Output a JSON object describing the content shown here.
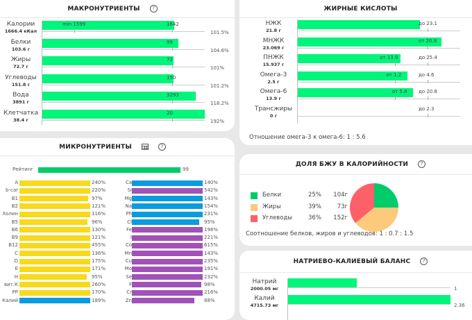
{
  "macro": {
    "title": "МАКРОНУТРИЕНТЫ",
    "help_icon": "?",
    "rows": [
      {
        "name": "Калории",
        "value": "1666.4 кКал",
        "norm_label": "1642",
        "min_label": "min 1599",
        "percent": "101.5%",
        "fill": 1.015
      },
      {
        "name": "Белки",
        "value": "103.6 г",
        "norm_label": "99",
        "percent": "104.6%",
        "fill": 1.046
      },
      {
        "name": "Жиры",
        "value": "72.7 г",
        "norm_label": "72",
        "percent": "101%",
        "fill": 1.01
      },
      {
        "name": "Углеводы",
        "value": "151.8 г",
        "norm_label": "150",
        "percent": "101.2%",
        "fill": 1.012
      },
      {
        "name": "Вода",
        "value": "3891 г",
        "norm_label": "3293",
        "percent": "118.2%",
        "fill": 1.182
      },
      {
        "name": "Клетчатка",
        "value": "38.4 г",
        "norm_label": "20",
        "percent": "192%",
        "fill": 1.25
      }
    ]
  },
  "fatty": {
    "title": "ЖИРНЫЕ КИСЛОТЫ",
    "rows": [
      {
        "name": "НЖК",
        "value": "21.8 г",
        "labels": [
          "до 23.1"
        ],
        "fill": 0.755
      },
      {
        "name": "МНЖК",
        "value": "23.069 г",
        "labels": [
          "от 20.8"
        ],
        "fill": 0.885
      },
      {
        "name": "ПНЖК",
        "value": "15.937 г",
        "labels": [
          "от 13.9",
          "до 25.4"
        ],
        "fill": 0.635
      },
      {
        "name": "Омега-3",
        "value": "2.5 г",
        "labels": [
          "от 1.2",
          "до 4.6"
        ],
        "fill": 0.675
      },
      {
        "name": "Омега-6",
        "value": "13.9 г",
        "labels": [
          "от 5.8",
          "до 20.8"
        ],
        "fill": 0.71
      },
      {
        "name": "Трансжиры",
        "value": "0 г",
        "labels": [
          "до 2.3"
        ],
        "fill": 0
      }
    ],
    "ratio_text": "Отношение омега-3 к омега-6: 1 : 5.6"
  },
  "micro": {
    "title": "МИКРОНУТРИЕНТЫ",
    "rating_label": "Рейтинг",
    "rating_value": "99",
    "colors": {
      "vitamin": "#f7d91e",
      "macro": "#0a9be0",
      "trace": "#a152b7",
      "rating": "#00cc6a"
    },
    "left": [
      {
        "name": "A",
        "pct": "240%",
        "type": "vitamin",
        "full": true
      },
      {
        "name": "b-car",
        "pct": "220%",
        "type": "vitamin",
        "full": true
      },
      {
        "name": "B1",
        "pct": "97%",
        "type": "vitamin",
        "full": false,
        "fill": 0.97
      },
      {
        "name": "B2",
        "pct": "121%",
        "type": "vitamin",
        "full": true
      },
      {
        "name": "Холин",
        "pct": "116%",
        "type": "vitamin",
        "full": true
      },
      {
        "name": "B5",
        "pct": "96%",
        "type": "vitamin",
        "full": false,
        "fill": 0.96
      },
      {
        "name": "B6",
        "pct": "130%",
        "type": "vitamin",
        "full": true
      },
      {
        "name": "B9",
        "pct": "121%",
        "type": "vitamin",
        "full": true
      },
      {
        "name": "B12",
        "pct": "455%",
        "type": "vitamin",
        "full": true
      },
      {
        "name": "C",
        "pct": "136%",
        "type": "vitamin",
        "full": true
      },
      {
        "name": "D",
        "pct": "175%",
        "type": "vitamin",
        "full": true
      },
      {
        "name": "E",
        "pct": "171%",
        "type": "vitamin",
        "full": true
      },
      {
        "name": "H",
        "pct": "95%",
        "type": "vitamin",
        "full": false,
        "fill": 0.95
      },
      {
        "name": "вит.К",
        "pct": "260%",
        "type": "vitamin",
        "full": true
      },
      {
        "name": "PP",
        "pct": "170%",
        "type": "vitamin",
        "full": true
      },
      {
        "name": "Калий",
        "pct": "189%",
        "type": "macro",
        "full": true
      }
    ],
    "right": [
      {
        "name": "Ca",
        "pct": "140%",
        "type": "macro",
        "full": true
      },
      {
        "name": "Si",
        "pct": "542%",
        "type": "trace",
        "full": true
      },
      {
        "name": "Mg",
        "pct": "143%",
        "type": "macro",
        "full": true
      },
      {
        "name": "Na",
        "pct": "154%",
        "type": "macro",
        "full": true
      },
      {
        "name": "Ph",
        "pct": "231%",
        "type": "macro",
        "full": true
      },
      {
        "name": "Cl",
        "pct": "95%",
        "type": "macro",
        "full": false,
        "fill": 0.95
      },
      {
        "name": "Fe",
        "pct": "198%",
        "type": "trace",
        "full": true
      },
      {
        "name": "I",
        "pct": "221%",
        "type": "trace",
        "full": true
      },
      {
        "name": "Co",
        "pct": "615%",
        "type": "trace",
        "full": true
      },
      {
        "name": "Mn",
        "pct": "143%",
        "type": "trace",
        "full": true
      },
      {
        "name": "Cu",
        "pct": "235%",
        "type": "trace",
        "full": true
      },
      {
        "name": "Mo",
        "pct": "191%",
        "type": "trace",
        "full": true
      },
      {
        "name": "Se",
        "pct": "232%",
        "type": "trace",
        "full": true
      },
      {
        "name": "F",
        "pct": "98%",
        "type": "trace",
        "full": false,
        "fill": 0.98
      },
      {
        "name": "Cr",
        "pct": "216%",
        "type": "trace",
        "full": true
      },
      {
        "name": "Zn",
        "pct": "88%",
        "type": "trace",
        "full": false,
        "fill": 0.88
      }
    ]
  },
  "bju": {
    "title": "ДОЛЯ БЖУ В КАЛОРИЙНОСТИ",
    "items": [
      {
        "name": "Белки",
        "percent": "25%",
        "grams": "104г",
        "color": "#00cc6a",
        "share": 25
      },
      {
        "name": "Жиры",
        "percent": "39%",
        "grams": "73г",
        "color": "#fdc97a",
        "share": 39
      },
      {
        "name": "Углеводы",
        "percent": "36%",
        "grams": "152г",
        "color": "#fe6068",
        "share": 36
      }
    ],
    "ratio_text": "Соотношение белков, жиров и углеводов: 1 : 0.7 : 1.5"
  },
  "nak": {
    "title": "НАТРИЕВО-КАЛИЕВЫЙ БАЛАНС",
    "rows": [
      {
        "name": "Натрий",
        "value": "2000.05 мг",
        "ratio": "1",
        "fill": 0.424
      },
      {
        "name": "Калий",
        "value": "4715.73 мг",
        "ratio": "2.36",
        "fill": 1.0
      }
    ]
  }
}
